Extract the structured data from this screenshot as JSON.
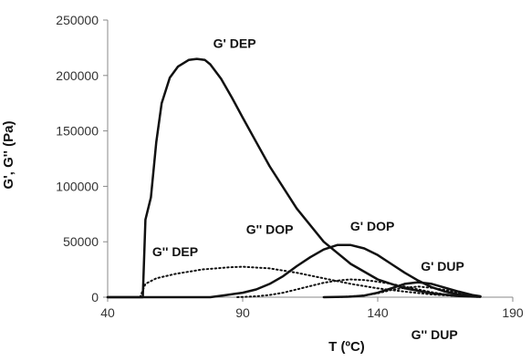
{
  "chart_data": {
    "type": "line",
    "title": "",
    "xlabel": "T (ºC)",
    "ylabel": "G', G'' (Pa)",
    "xlim": [
      40,
      190
    ],
    "ylim": [
      0,
      250000
    ],
    "xticks": [
      40,
      90,
      140,
      190
    ],
    "yticks": [
      0,
      50000,
      100000,
      150000,
      200000,
      250000
    ],
    "xtick_labels": [
      "40",
      "90",
      "140",
      "190"
    ],
    "ytick_labels": [
      "0",
      "50000",
      "100000",
      "150000",
      "200000",
      "250000"
    ],
    "grid": false,
    "series": [
      {
        "name": "G' DEP",
        "style": "solid",
        "x": [
          40,
          51,
          53,
          54,
          56,
          58,
          60,
          63,
          66,
          70,
          73,
          76,
          78,
          82,
          86,
          90,
          95,
          100,
          110,
          120,
          130,
          140,
          150,
          160,
          170,
          178
        ],
        "y": [
          0,
          0,
          0,
          70000,
          90000,
          140000,
          175000,
          198000,
          208000,
          214000,
          215000,
          214000,
          210000,
          197000,
          180000,
          162000,
          140000,
          118000,
          80000,
          50000,
          30000,
          16000,
          8000,
          3500,
          1000,
          300
        ]
      },
      {
        "name": "G'' DEP",
        "style": "dotted",
        "x": [
          52,
          54,
          58,
          65,
          75,
          85,
          90,
          100,
          110,
          120,
          130,
          140,
          150,
          160,
          170,
          178
        ],
        "y": [
          0,
          12000,
          17000,
          21000,
          25000,
          27000,
          27500,
          26000,
          22000,
          17000,
          12000,
          8000,
          5000,
          2500,
          1000,
          300
        ]
      },
      {
        "name": "G' DOP",
        "style": "solid",
        "x": [
          40,
          78,
          84,
          90,
          95,
          100,
          105,
          110,
          115,
          120,
          125,
          130,
          135,
          140,
          145,
          150,
          155,
          160,
          165,
          170,
          175,
          178
        ],
        "y": [
          0,
          0,
          2000,
          4000,
          7000,
          12000,
          19000,
          28000,
          36000,
          43000,
          47000,
          47000,
          44000,
          38000,
          30000,
          22000,
          15000,
          9000,
          5000,
          2500,
          1000,
          500
        ]
      },
      {
        "name": "G'' DOP",
        "style": "dotted",
        "x": [
          88,
          95,
          100,
          105,
          110,
          115,
          120,
          125,
          130,
          135,
          140,
          145,
          150,
          155,
          160,
          165,
          170,
          175,
          178
        ],
        "y": [
          0,
          800,
          2000,
          4000,
          7000,
          10000,
          13000,
          15000,
          16000,
          15500,
          14000,
          12000,
          9500,
          7000,
          4500,
          2500,
          1200,
          500,
          200
        ]
      },
      {
        "name": "G' DUP",
        "style": "solid",
        "x": [
          120,
          130,
          135,
          140,
          145,
          150,
          155,
          160,
          165,
          170,
          175,
          178
        ],
        "y": [
          0,
          500,
          1500,
          4000,
          8000,
          12000,
          13500,
          12000,
          8500,
          5000,
          2000,
          800
        ]
      },
      {
        "name": "G'' DUP",
        "style": "dotted",
        "x": [
          125,
          135,
          140,
          145,
          150,
          155,
          160,
          165,
          170,
          175,
          178
        ],
        "y": [
          0,
          1500,
          3500,
          6500,
          8500,
          9500,
          8500,
          6500,
          4000,
          1800,
          700
        ]
      }
    ],
    "annotations": [
      {
        "text": "G' DEP",
        "x": 87,
        "y": 225000
      },
      {
        "text": "G'' DEP",
        "x": 65,
        "y": 37000
      },
      {
        "text": "G'' DOP",
        "x": 100,
        "y": 57000
      },
      {
        "text": "G' DOP",
        "x": 138,
        "y": 60000
      },
      {
        "text": "G' DUP",
        "x": 164,
        "y": 24000
      },
      {
        "text": "G'' DUP",
        "x": 161,
        "y": -38000
      }
    ]
  }
}
